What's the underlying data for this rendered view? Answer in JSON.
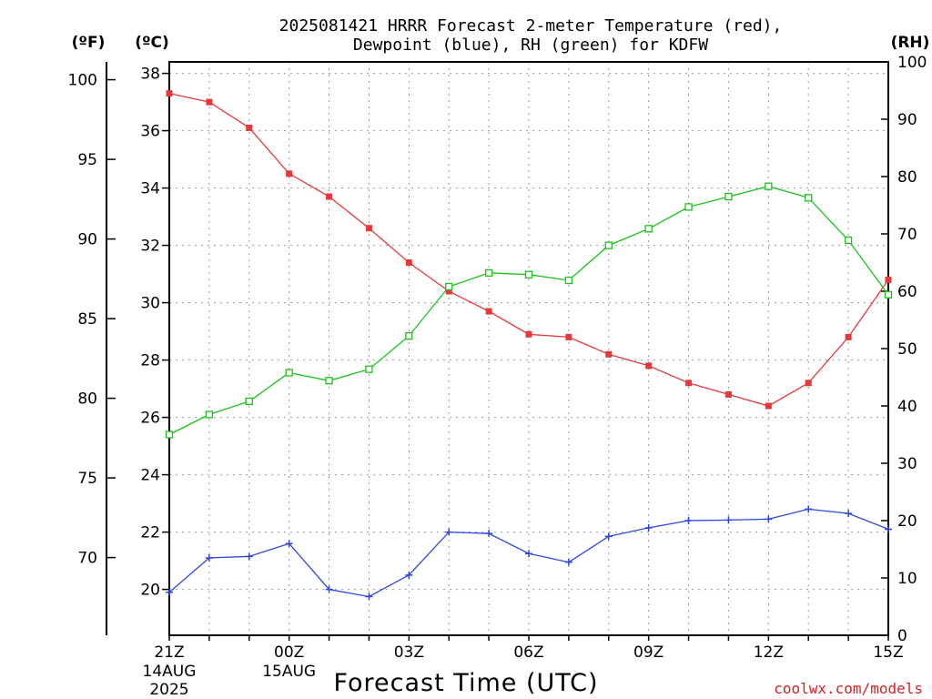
{
  "title": {
    "line1": "2025081421 HRRR Forecast 2-meter Temperature (red),",
    "line2": "Dewpoint (blue), RH (green) for KDFW"
  },
  "credit": "coolwx.com/models",
  "colors": {
    "temperature": "#e8373a",
    "dewpoint": "#2f45e0",
    "rh": "#18c418",
    "credit": "#d82020"
  },
  "chart_data": {
    "type": "line",
    "title": "2025081421 HRRR Forecast 2-meter Temperature (red), Dewpoint (blue), RH (green) for KDFW",
    "xlabel": "Forecast Time (UTC)",
    "x": [
      "21Z 14AUG 2025",
      "22Z",
      "23Z",
      "00Z 15AUG",
      "01Z",
      "02Z",
      "03Z",
      "04Z",
      "05Z",
      "06Z",
      "07Z",
      "08Z",
      "09Z",
      "10Z",
      "11Z",
      "12Z",
      "13Z",
      "14Z",
      "15Z"
    ],
    "x_ticks": [
      {
        "label": "21Z",
        "sub": [
          "14AUG",
          "2025"
        ],
        "index": 0
      },
      {
        "label": "00Z",
        "sub": [
          "15AUG"
        ],
        "index": 3
      },
      {
        "label": "03Z",
        "sub": [],
        "index": 6
      },
      {
        "label": "06Z",
        "sub": [],
        "index": 9
      },
      {
        "label": "09Z",
        "sub": [],
        "index": 12
      },
      {
        "label": "12Z",
        "sub": [],
        "index": 15
      },
      {
        "label": "15Z",
        "sub": [],
        "index": 18
      }
    ],
    "axes": {
      "celsius": {
        "unit_label": "(ºC)",
        "ticks": [
          20,
          22,
          24,
          26,
          28,
          30,
          32,
          34,
          36,
          38
        ],
        "range": [
          18.4,
          38.4
        ],
        "grid": true
      },
      "fahrenheit": {
        "unit_label": "(ºF)",
        "ticks": [
          70,
          75,
          80,
          85,
          90,
          95,
          100
        ],
        "range": [
          65.12,
          101.12
        ]
      },
      "rh": {
        "unit_label": "(RH)",
        "ticks": [
          0,
          10,
          20,
          30,
          40,
          50,
          60,
          70,
          80,
          90,
          100
        ],
        "range": [
          0,
          100
        ]
      }
    },
    "series": [
      {
        "name": "Temperature",
        "axis": "celsius",
        "marker": "filled-square",
        "color": "#e8373a",
        "values": [
          37.3,
          37.0,
          36.1,
          34.5,
          33.7,
          32.6,
          31.4,
          30.4,
          29.7,
          28.9,
          28.8,
          28.2,
          27.8,
          27.2,
          26.8,
          26.4,
          27.2,
          28.8,
          30.8
        ]
      },
      {
        "name": "Dewpoint",
        "axis": "celsius",
        "marker": "plus",
        "color": "#2f45e0",
        "values": [
          19.9,
          21.1,
          21.15,
          21.6,
          20.0,
          19.75,
          20.5,
          22.0,
          21.95,
          21.25,
          20.95,
          21.85,
          22.15,
          22.4,
          22.42,
          22.45,
          22.8,
          22.65,
          22.1
        ]
      },
      {
        "name": "RH",
        "axis": "rh",
        "marker": "open-square",
        "color": "#18c418",
        "values": [
          35,
          38.5,
          40.8,
          45.8,
          44.4,
          46.4,
          52.2,
          60.8,
          63.2,
          62.9,
          61.9,
          68.0,
          70.9,
          74.7,
          76.5,
          78.3,
          76.3,
          68.9,
          59.4
        ]
      }
    ]
  }
}
